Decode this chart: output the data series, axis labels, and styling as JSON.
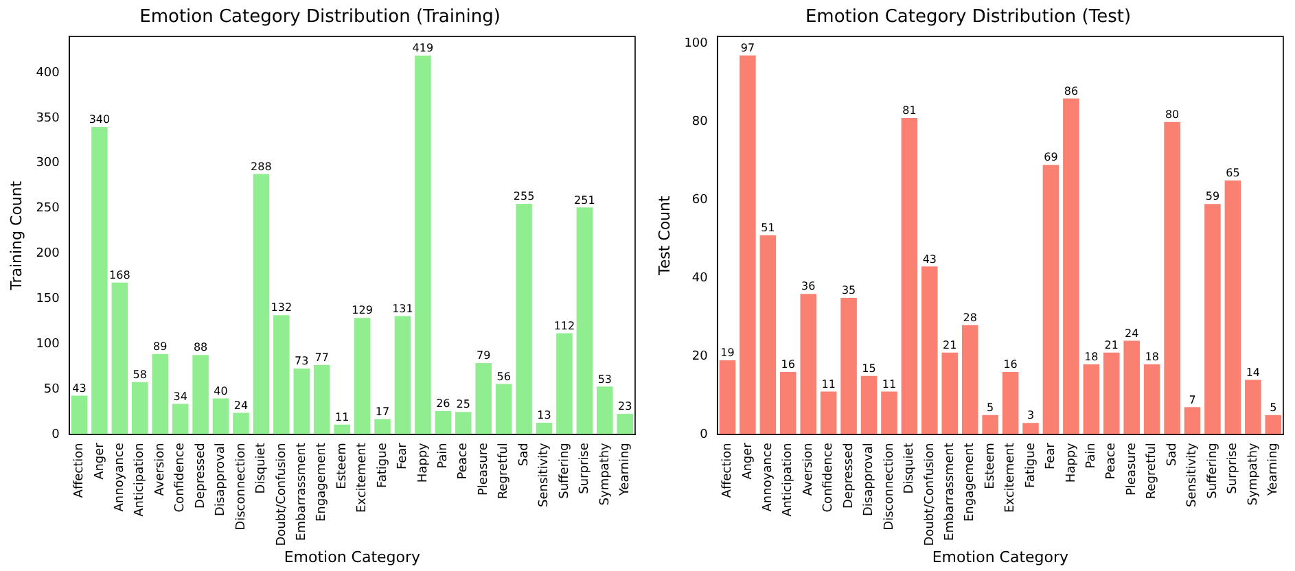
{
  "chart_data": [
    {
      "type": "bar",
      "title": "Emotion Category Distribution (Training)",
      "xlabel": "Emotion Category",
      "ylabel": "Training Count",
      "categories": [
        "Affection",
        "Anger",
        "Annoyance",
        "Anticipation",
        "Aversion",
        "Confidence",
        "Depressed",
        "Disapproval",
        "Disconnection",
        "Disquiet",
        "Doubt/Confusion",
        "Embarrassment",
        "Engagement",
        "Esteem",
        "Excitement",
        "Fatigue",
        "Fear",
        "Happy",
        "Pain",
        "Peace",
        "Pleasure",
        "Regretful",
        "Sad",
        "Sensitivity",
        "Suffering",
        "Surprise",
        "Sympathy",
        "Yearning"
      ],
      "values": [
        43,
        340,
        168,
        58,
        89,
        34,
        88,
        40,
        24,
        288,
        132,
        73,
        77,
        11,
        129,
        17,
        131,
        419,
        26,
        25,
        79,
        56,
        255,
        13,
        112,
        251,
        53,
        23
      ],
      "color": "#90ee90",
      "ylim": [
        0,
        440
      ],
      "yticks": [
        0,
        50,
        100,
        150,
        200,
        250,
        300,
        350,
        400
      ],
      "grid": false,
      "data_labels": true
    },
    {
      "type": "bar",
      "title": "Emotion Category Distribution (Test)",
      "xlabel": "Emotion Category",
      "ylabel": "Test Count",
      "categories": [
        "Affection",
        "Anger",
        "Annoyance",
        "Anticipation",
        "Aversion",
        "Confidence",
        "Depressed",
        "Disapproval",
        "Disconnection",
        "Disquiet",
        "Doubt/Confusion",
        "Embarrassment",
        "Engagement",
        "Esteem",
        "Excitement",
        "Fatigue",
        "Fear",
        "Happy",
        "Pain",
        "Peace",
        "Pleasure",
        "Regretful",
        "Sad",
        "Sensitivity",
        "Suffering",
        "Surprise",
        "Sympathy",
        "Yearning"
      ],
      "values": [
        19,
        97,
        51,
        16,
        36,
        11,
        35,
        15,
        11,
        81,
        43,
        21,
        28,
        5,
        16,
        3,
        69,
        86,
        18,
        21,
        24,
        18,
        80,
        7,
        59,
        65,
        14,
        5
      ],
      "color": "#fa8072",
      "ylim": [
        0,
        101.85
      ],
      "yticks": [
        0,
        20,
        40,
        60,
        80,
        100
      ],
      "grid": false,
      "data_labels": true
    }
  ]
}
